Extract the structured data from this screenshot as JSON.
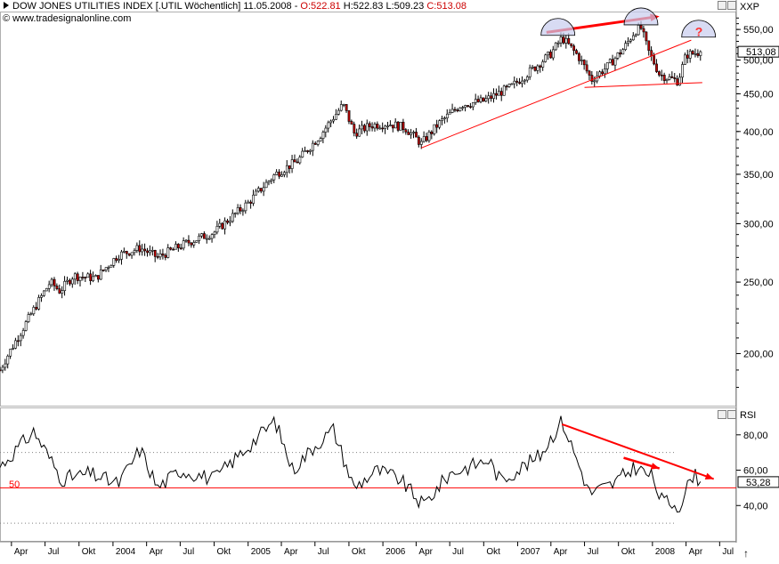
{
  "header": {
    "title": "DOW JONES UTILITIES INDEX [.UTIL  Wöchentlich]",
    "date": "11.05.2008",
    "sep": "-",
    "open": "O:522.81",
    "high": "H:522.83",
    "low": "L:509.23",
    "close": "C:513.08",
    "copyright": "© www.tradesignalonline.com",
    "instrument": "XXP",
    "rsi_label": "RSI"
  },
  "colors": {
    "background": "#ffffff",
    "candle_up": "#ffffff",
    "candle_down": "#c00000",
    "trendline": "#ff0000",
    "arrow": "#ff0000",
    "arc_fill": "#c8ccee",
    "rsi_line": "#000000",
    "rsi_ref": "#ff0000",
    "close_text_red": "#cc0000"
  },
  "chart_data": [
    {
      "type": "candlestick",
      "title": "DOW JONES UTILITIES INDEX [.UTIL  Wöchentlich]",
      "scale": "log",
      "ylim": [
        170,
        580
      ],
      "yticks": [
        200,
        250,
        300,
        350,
        400,
        450,
        500,
        550
      ],
      "ytick_labels": [
        "200,00",
        "250,00",
        "300,00",
        "350,00",
        "400,00",
        "450,00",
        "500,00",
        "550,00"
      ],
      "last_value": 513.08,
      "last_value_label": "513,08",
      "x_start": "2003-03-01",
      "x_end": "2008-05-11",
      "x_range_end": "2008-08-15",
      "anchors": [
        [
          "2003-03-01",
          190
        ],
        [
          "2003-05-15",
          222
        ],
        [
          "2003-07-15",
          250
        ],
        [
          "2003-08-10",
          243
        ],
        [
          "2003-09-15",
          255
        ],
        [
          "2003-11-15",
          253
        ],
        [
          "2004-01-15",
          272
        ],
        [
          "2004-03-15",
          278
        ],
        [
          "2004-05-01",
          270
        ],
        [
          "2004-07-15",
          282
        ],
        [
          "2004-10-01",
          292
        ],
        [
          "2005-01-01",
          320
        ],
        [
          "2005-03-15",
          350
        ],
        [
          "2005-05-15",
          365
        ],
        [
          "2005-07-15",
          395
        ],
        [
          "2005-08-15",
          415
        ],
        [
          "2005-09-15",
          435
        ],
        [
          "2005-10-15",
          398
        ],
        [
          "2005-12-01",
          408
        ],
        [
          "2006-01-15",
          410
        ],
        [
          "2006-03-01",
          405
        ],
        [
          "2006-04-15",
          385
        ],
        [
          "2006-06-01",
          410
        ],
        [
          "2006-08-01",
          435
        ],
        [
          "2006-10-01",
          440
        ],
        [
          "2006-12-15",
          460
        ],
        [
          "2007-02-15",
          488
        ],
        [
          "2007-04-01",
          510
        ],
        [
          "2007-05-01",
          536
        ],
        [
          "2007-06-15",
          505
        ],
        [
          "2007-07-20",
          470
        ],
        [
          "2007-09-01",
          490
        ],
        [
          "2007-10-15",
          518
        ],
        [
          "2007-11-15",
          548
        ],
        [
          "2007-12-01",
          552
        ],
        [
          "2007-12-20",
          515
        ],
        [
          "2008-01-20",
          478
        ],
        [
          "2008-03-10",
          468
        ],
        [
          "2008-04-01",
          508
        ],
        [
          "2008-05-11",
          513
        ]
      ],
      "annotations": {
        "support_line": [
          [
            "2006-04-15",
            380
          ],
          [
            "2008-04-15",
            532
          ]
        ],
        "neck_line": [
          [
            "2007-07-01",
            459
          ],
          [
            "2008-05-15",
            466
          ]
        ],
        "top_arrow": [
          [
            "2007-03-20",
            545
          ],
          [
            "2008-01-20",
            573
          ]
        ],
        "arcs": [
          [
            "2007-04-20",
            540
          ],
          [
            "2007-12-01",
            558
          ],
          [
            "2008-05-05",
            537
          ]
        ],
        "question_mark": "?"
      }
    },
    {
      "type": "line",
      "title": "RSI",
      "ylim": [
        20,
        95
      ],
      "yticks": [
        40,
        60,
        80
      ],
      "ytick_labels": [
        "40,00",
        "60,00",
        "80,00"
      ],
      "reference_line": 50,
      "reference_label": "50",
      "dotted_levels": [
        30,
        70
      ],
      "last_value": 53.28,
      "last_value_label": "53,28",
      "anchors": [
        [
          "2003-03-01",
          62
        ],
        [
          "2003-06-01",
          82
        ],
        [
          "2003-08-15",
          55
        ],
        [
          "2003-11-01",
          58
        ],
        [
          "2004-01-15",
          52
        ],
        [
          "2004-03-15",
          72
        ],
        [
          "2004-05-01",
          50
        ],
        [
          "2004-07-01",
          60
        ],
        [
          "2004-10-01",
          55
        ],
        [
          "2005-03-15",
          88
        ],
        [
          "2005-05-01",
          60
        ],
        [
          "2005-07-01",
          74
        ],
        [
          "2005-08-20",
          83
        ],
        [
          "2005-10-15",
          50
        ],
        [
          "2005-12-15",
          60
        ],
        [
          "2006-02-15",
          55
        ],
        [
          "2006-04-20",
          40
        ],
        [
          "2006-07-01",
          58
        ],
        [
          "2006-10-15",
          66
        ],
        [
          "2006-11-15",
          54
        ],
        [
          "2007-03-01",
          68
        ],
        [
          "2007-05-01",
          88
        ],
        [
          "2007-07-15",
          47
        ],
        [
          "2007-09-15",
          52
        ],
        [
          "2007-11-15",
          62
        ],
        [
          "2008-01-01",
          56
        ],
        [
          "2008-01-25",
          43
        ],
        [
          "2008-03-15",
          40
        ],
        [
          "2008-04-20",
          58
        ],
        [
          "2008-05-11",
          53.28
        ]
      ],
      "annotations": {
        "arrow_long": [
          [
            "2007-05-01",
            86
          ],
          [
            "2008-06-15",
            55
          ]
        ],
        "arrow_short": [
          [
            "2007-10-15",
            67
          ],
          [
            "2008-01-20",
            61
          ]
        ]
      }
    }
  ],
  "x_axis": {
    "ticks": [
      {
        "date": "2003-04-01",
        "label": "Apr"
      },
      {
        "date": "2003-07-01",
        "label": "Jul"
      },
      {
        "date": "2003-10-01",
        "label": "Okt"
      },
      {
        "date": "2004-01-01",
        "label": "2004"
      },
      {
        "date": "2004-04-01",
        "label": "Apr"
      },
      {
        "date": "2004-07-01",
        "label": "Jul"
      },
      {
        "date": "2004-10-01",
        "label": "Okt"
      },
      {
        "date": "2005-01-01",
        "label": "2005"
      },
      {
        "date": "2005-04-01",
        "label": "Apr"
      },
      {
        "date": "2005-07-01",
        "label": "Jul"
      },
      {
        "date": "2005-10-01",
        "label": "Okt"
      },
      {
        "date": "2006-01-01",
        "label": "2006"
      },
      {
        "date": "2006-04-01",
        "label": "Apr"
      },
      {
        "date": "2006-07-01",
        "label": "Jul"
      },
      {
        "date": "2006-10-01",
        "label": "Okt"
      },
      {
        "date": "2007-01-01",
        "label": "2007"
      },
      {
        "date": "2007-04-01",
        "label": "Apr"
      },
      {
        "date": "2007-07-01",
        "label": "Jul"
      },
      {
        "date": "2007-10-01",
        "label": "Okt"
      },
      {
        "date": "2008-01-01",
        "label": "2008"
      },
      {
        "date": "2008-04-01",
        "label": "Apr"
      },
      {
        "date": "2008-07-01",
        "label": "Jul"
      }
    ]
  }
}
